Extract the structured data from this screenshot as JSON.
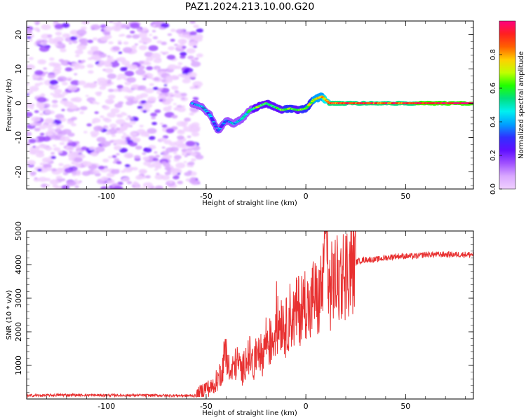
{
  "figure_title": "PAZ1.2024.213.10.00.G20",
  "chart_data": [
    {
      "type": "heatmap",
      "title": "",
      "xlabel": "Height of straight line (km)",
      "ylabel": "Frequency (Hz)",
      "xlim": [
        -140,
        84
      ],
      "ylim": [
        -25,
        24
      ],
      "xticks": [
        -100,
        -50,
        0,
        50
      ],
      "yticks": [
        -20,
        -10,
        0,
        10,
        20
      ],
      "colorbar": {
        "label": "Normalized spectral amplitude",
        "range": [
          0,
          1
        ],
        "ticks": [
          0.0,
          0.2,
          0.4,
          0.6,
          0.8
        ],
        "colormap": [
          "#f0d0ff",
          "#d9a8ff",
          "#a050ff",
          "#6010ff",
          "#3030ff",
          "#00a0ff",
          "#00f0f0",
          "#00e080",
          "#20ff00",
          "#c0ff00",
          "#ffd000",
          "#ff6000",
          "#ff2020",
          "#ff0080"
        ]
      },
      "signal_track": {
        "x": [
          -57,
          -52,
          -48,
          -44,
          -40,
          -36,
          -32,
          -28,
          -24,
          -20,
          -16,
          -12,
          -8,
          -4,
          0,
          4,
          8,
          12,
          16,
          20,
          30,
          40,
          50,
          60,
          70,
          84
        ],
        "y": [
          0,
          -1,
          -3.5,
          -8,
          -5,
          -6,
          -4.5,
          -2,
          -1,
          0,
          -1,
          -2,
          -1.5,
          -2,
          -1.5,
          1,
          2,
          0,
          0,
          0,
          0,
          0,
          0,
          0,
          0,
          0
        ],
        "amplitude": [
          0.35,
          0.4,
          0.35,
          0.3,
          0.35,
          0.4,
          0.45,
          0.5,
          0.6,
          0.55,
          0.55,
          0.6,
          0.65,
          0.6,
          0.65,
          0.7,
          0.75,
          0.85,
          0.9,
          0.9,
          0.9,
          0.88,
          0.9,
          0.95,
          0.98,
          1.0
        ]
      }
    },
    {
      "type": "line",
      "title": "",
      "xlabel": "Height of straight line (km)",
      "ylabel": "SNR (10 * v/v)",
      "xlim": [
        -140,
        84
      ],
      "ylim": [
        0,
        5000
      ],
      "xticks": [
        -100,
        -50,
        0,
        50
      ],
      "yticks": [
        1000,
        2000,
        3000,
        4000,
        5000
      ],
      "color": "#e83030",
      "series": [
        {
          "x": [
            -140,
            -120,
            -100,
            -80,
            -60,
            -55,
            -52,
            -50,
            -48,
            -46,
            -44,
            -42,
            -40,
            -38,
            -36,
            -34,
            -32,
            -30,
            -28,
            -26,
            -24,
            -22,
            -20,
            -18,
            -16,
            -14,
            -12,
            -10,
            -8,
            -6,
            -4,
            -2,
            0,
            2,
            4,
            6,
            8,
            10,
            12,
            14,
            16,
            18,
            20,
            22,
            24,
            26,
            30,
            35,
            40,
            45,
            50,
            55,
            60,
            65,
            70,
            75,
            80,
            84
          ],
          "values": [
            100,
            120,
            110,
            110,
            100,
            100,
            250,
            350,
            300,
            450,
            600,
            900,
            1500,
            700,
            1000,
            1100,
            800,
            1200,
            1300,
            900,
            1700,
            1200,
            1800,
            1600,
            1900,
            2200,
            2400,
            2100,
            2500,
            2400,
            2700,
            2600,
            3000,
            2500,
            3200,
            2800,
            3400,
            3300,
            3200,
            3600,
            3500,
            3700,
            3800,
            3900,
            4000,
            4100,
            4150,
            4150,
            4200,
            4250,
            4250,
            4250,
            4300,
            4300,
            4300,
            4300,
            4300,
            4300
          ]
        }
      ]
    }
  ]
}
